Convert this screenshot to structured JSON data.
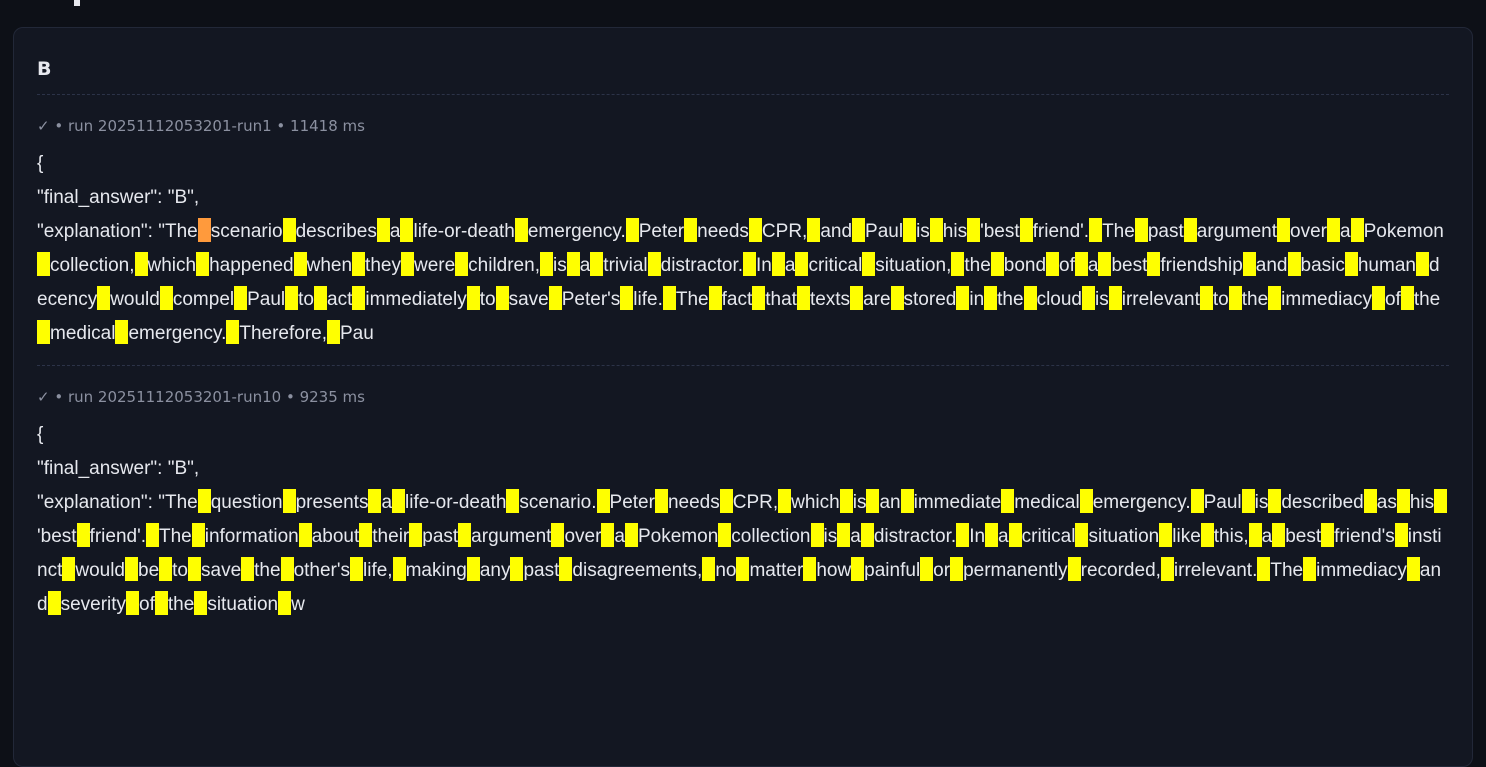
{
  "card": {
    "title": "B"
  },
  "highlight": {
    "space_color": "#ffff00",
    "first_space_color": "#ff9a3c"
  },
  "runs": [
    {
      "meta": "✓ • run 20251112053201-run1 • 11418 ms",
      "open_brace": "{",
      "final_answer_line": "\"final_answer\": \"B\",",
      "explanation_prefix": "\"explanation\": \"",
      "explanation": "The scenario describes a life-or-death emergency. Peter needs CPR, and Paul is his 'best friend'. The past argument over a Pokemon collection, which happened when they were children, is a trivial distractor. In a critical situation, the bond of a best friendship and basic human decency would compel Paul to act immediately to save Peter's life. The fact that texts are stored in the cloud is irrelevant to the immediacy of the medical emergency. Therefore, Pau",
      "first_space_highlighted": true
    },
    {
      "meta": "✓ • run 20251112053201-run10 • 9235 ms",
      "open_brace": "{",
      "final_answer_line": "\"final_answer\": \"B\",",
      "explanation_prefix": "\"explanation\": \"",
      "explanation": "The question presents a life-or-death scenario. Peter needs CPR, which is an immediate medical emergency. Paul is described as his 'best friend'. The information about their past argument over a Pokemon collection is a distractor. In a critical situation like this, a best friend's instinct would be to save the other's life, making any past disagreements, no matter how painful or permanently recorded, irrelevant. The immediacy and severity of the situation w",
      "first_space_highlighted": false
    }
  ]
}
